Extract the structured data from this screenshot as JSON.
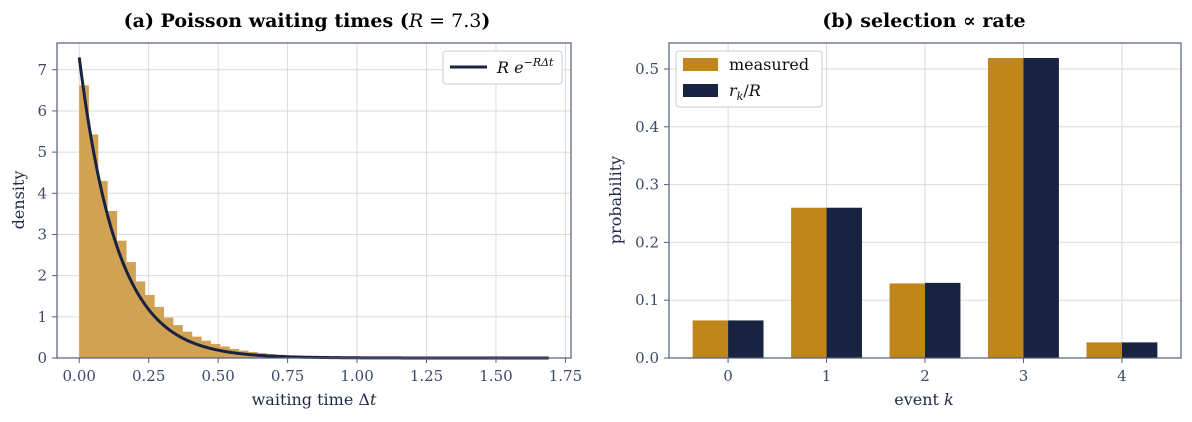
{
  "chart_data": [
    {
      "type": "bar",
      "title": "(a) Poisson waiting times (R = 7.3)",
      "xlabel": "waiting time Δt",
      "ylabel": "density",
      "xlim": [
        -0.08,
        1.77
      ],
      "ylim": [
        0,
        7.65
      ],
      "xticks": [
        "0.00",
        "0.25",
        "0.50",
        "0.75",
        "1.00",
        "1.25",
        "1.50",
        "1.75"
      ],
      "yticks": [
        "0",
        "1",
        "2",
        "3",
        "4",
        "5",
        "6",
        "7"
      ],
      "grid": true,
      "legend": {
        "placement": "top-right",
        "entries": [
          "R e^{−RΔt}"
        ]
      },
      "rate": 7.3,
      "histogram": {
        "color": "#d1a253",
        "bin_width": 0.0338,
        "x_start": 0,
        "values": [
          6.62,
          5.43,
          4.3,
          3.57,
          2.85,
          2.33,
          1.86,
          1.53,
          1.24,
          0.98,
          0.8,
          0.64,
          0.52,
          0.42,
          0.34,
          0.28,
          0.22,
          0.18,
          0.145,
          0.118,
          0.095,
          0.077,
          0.062,
          0.05,
          0.04,
          0.032,
          0.026,
          0.021,
          0.017,
          0.014,
          0.011,
          0.009,
          0.007,
          0.006,
          0.005,
          0.004,
          0.003,
          0.003,
          0.002,
          0.002,
          0.001,
          0.001,
          0.001,
          0.001,
          0.001,
          0.0,
          0.0,
          0.0,
          0.0,
          0.0
        ]
      },
      "curve": {
        "color": "#172340",
        "x_range": [
          0,
          1.69
        ]
      }
    },
    {
      "type": "bar",
      "title": "(b) selection ∝ rate",
      "xlabel": "event k",
      "ylabel": "probability",
      "ylim": [
        0,
        0.545
      ],
      "categories": [
        "0",
        "1",
        "2",
        "3",
        "4"
      ],
      "yticks": [
        "0.0",
        "0.1",
        "0.2",
        "0.3",
        "0.4",
        "0.5"
      ],
      "grid": true,
      "legend": {
        "placement": "top-left"
      },
      "series": [
        {
          "name": "measured",
          "color": "#c0861c",
          "values": [
            0.065,
            0.26,
            0.129,
            0.519,
            0.027
          ]
        },
        {
          "name": "r_k/R",
          "color": "#172340",
          "values": [
            0.065,
            0.26,
            0.13,
            0.519,
            0.027
          ]
        }
      ]
    }
  ]
}
